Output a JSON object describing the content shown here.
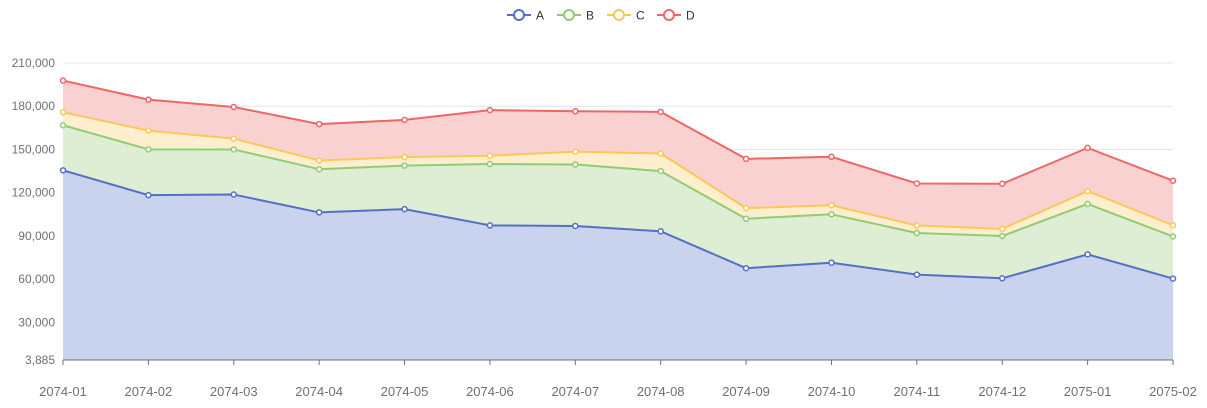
{
  "chart_data": {
    "type": "area",
    "stacked": true,
    "title": "",
    "xlabel": "",
    "ylabel": "",
    "legend_position": "top-center",
    "grid": true,
    "x": [
      "2074-01",
      "2074-02",
      "2074-03",
      "2074-04",
      "2074-05",
      "2074-06",
      "2074-07",
      "2074-08",
      "2074-09",
      "2074-10",
      "2074-11",
      "2074-12",
      "2075-01",
      "2075-02"
    ],
    "ylim": [
      3885,
      210000
    ],
    "y_ticks": [
      3885,
      30000,
      60000,
      90000,
      120000,
      150000,
      180000,
      210000
    ],
    "y_tick_labels": [
      "3,885",
      "30,000",
      "60,000",
      "90,000",
      "120,000",
      "150,000",
      "180,000",
      "210,000"
    ],
    "series": [
      {
        "name": "A",
        "color": "#5470c6",
        "fill": "#c9d3ee",
        "values": [
          135500,
          118300,
          118700,
          106300,
          108600,
          97300,
          96900,
          93200,
          67600,
          71400,
          63100,
          60600,
          77200,
          60400
        ]
      },
      {
        "name": "B",
        "color": "#91cc75",
        "fill": "#ddeed4",
        "values": [
          31300,
          31800,
          31300,
          30000,
          30200,
          42600,
          42700,
          41800,
          34300,
          33600,
          28900,
          29300,
          35000,
          29200
        ]
      },
      {
        "name": "C",
        "color": "#fac858",
        "fill": "#fdefcd",
        "values": [
          9000,
          13000,
          7500,
          6000,
          5900,
          5700,
          8900,
          12200,
          7400,
          6300,
          5200,
          5000,
          8900,
          7800
        ]
      },
      {
        "name": "D",
        "color": "#ee6666",
        "fill": "#f9d1d1",
        "values": [
          22000,
          21500,
          22000,
          25300,
          25800,
          31700,
          28000,
          28900,
          34200,
          33600,
          29200,
          31300,
          30000,
          30900
        ]
      }
    ]
  }
}
